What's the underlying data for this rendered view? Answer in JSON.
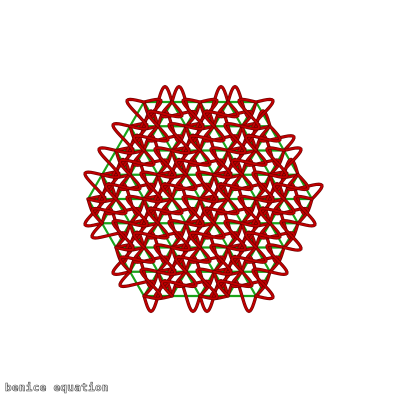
{
  "caption": "benice equation",
  "colors": {
    "lattice": "#1aa31a",
    "curve": "#c00000",
    "curve_dark": "#6a0000",
    "background": "#ffffff"
  },
  "figure": {
    "kind": "hexagonal-lattice-with-sinusoidal-curves",
    "hex_rings": 4,
    "wave_amplitude_ratio": 0.55
  }
}
